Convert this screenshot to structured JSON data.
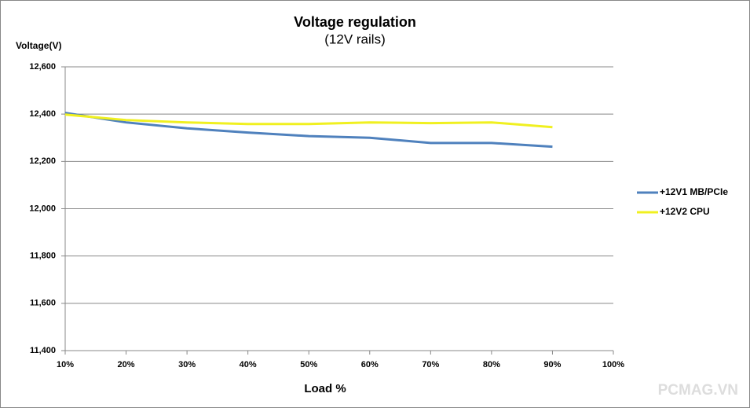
{
  "chart_data": {
    "type": "line",
    "title": "Voltage regulation",
    "subtitle": "(12V rails)",
    "y_label": "Voltage(V)",
    "x_label": "Load %",
    "watermark": "PCMAG.VN",
    "categories": [
      "10%",
      "20%",
      "30%",
      "40%",
      "50%",
      "60%",
      "70%",
      "80%",
      "90%",
      "100%"
    ],
    "series": [
      {
        "name": "+12V1 MB/PCIe",
        "color": "#4f81bd",
        "values": [
          12405,
          12365,
          12340,
          12322,
          12307,
          12300,
          12278,
          12278,
          12262,
          null
        ]
      },
      {
        "name": "+12V2 CPU",
        "color": "#f0f020",
        "values": [
          12398,
          12375,
          12365,
          12358,
          12358,
          12365,
          12362,
          12365,
          12345,
          null
        ]
      }
    ],
    "ylim": [
      11400,
      12600
    ],
    "yticks": [
      {
        "value": 11400,
        "label": "11,400"
      },
      {
        "value": 11600,
        "label": "11,600"
      },
      {
        "value": 11800,
        "label": "11,800"
      },
      {
        "value": 12000,
        "label": "12,000"
      },
      {
        "value": 12200,
        "label": "12,200"
      },
      {
        "value": 12400,
        "label": "12,400"
      },
      {
        "value": 12600,
        "label": "12,600"
      }
    ],
    "grid": true,
    "legend": "right"
  }
}
